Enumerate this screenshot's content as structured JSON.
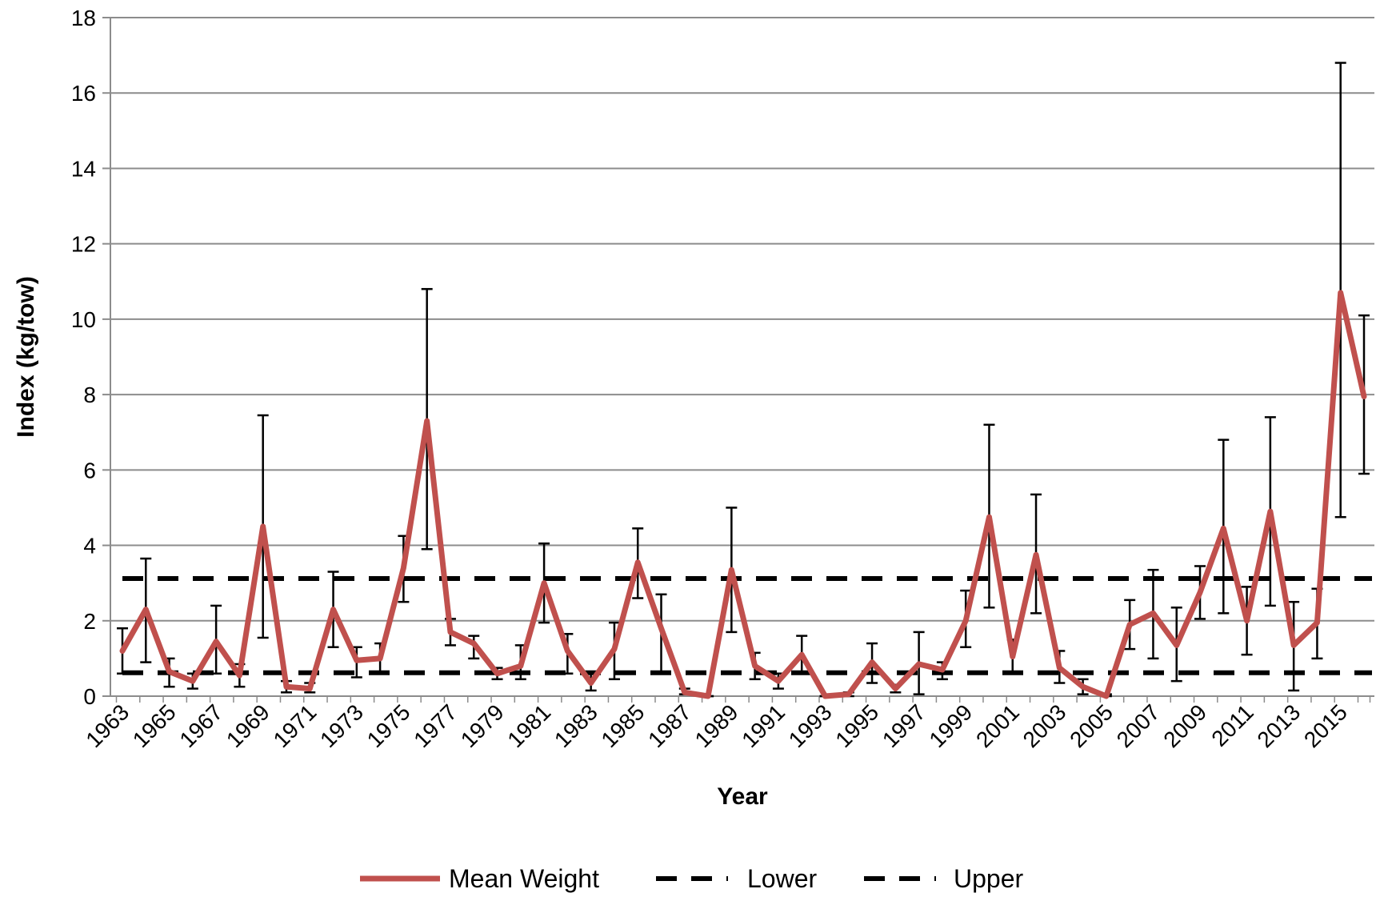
{
  "chart_data": {
    "type": "line",
    "xlabel": "Year",
    "ylabel": "Index (kg/tow)",
    "ylim": [
      0,
      18
    ],
    "yticks": [
      0,
      2,
      4,
      6,
      8,
      10,
      12,
      14,
      16,
      18
    ],
    "x": [
      1963,
      1964,
      1965,
      1966,
      1967,
      1968,
      1969,
      1970,
      1971,
      1972,
      1973,
      1974,
      1975,
      1976,
      1977,
      1978,
      1979,
      1980,
      1981,
      1982,
      1983,
      1984,
      1985,
      1986,
      1987,
      1988,
      1989,
      1990,
      1991,
      1992,
      1993,
      1994,
      1995,
      1996,
      1997,
      1998,
      1999,
      2000,
      2001,
      2002,
      2003,
      2004,
      2005,
      2006,
      2007,
      2008,
      2009,
      2010,
      2011,
      2012,
      2013,
      2014,
      2015,
      2016
    ],
    "x_tick_labels": [
      "1963",
      "1965",
      "1967",
      "1969",
      "1971",
      "1973",
      "1975",
      "1977",
      "1979",
      "1981",
      "1983",
      "1985",
      "1987",
      "1989",
      "1991",
      "1993",
      "1995",
      "1997",
      "1999",
      "2001",
      "2003",
      "2005",
      "2007",
      "2009",
      "2011",
      "2013",
      "2015"
    ],
    "grid": true,
    "legend_position": "bottom",
    "series": [
      {
        "name": "Mean Weight",
        "color": "#c0504d",
        "style": "solid",
        "values": [
          1.2,
          2.3,
          0.65,
          0.4,
          1.45,
          0.55,
          4.5,
          0.25,
          0.2,
          2.3,
          0.95,
          1.0,
          3.4,
          7.3,
          1.7,
          1.4,
          0.6,
          0.8,
          3.0,
          1.2,
          0.35,
          1.25,
          3.55,
          1.8,
          0.1,
          0.0,
          3.35,
          0.8,
          0.4,
          1.1,
          0.0,
          0.05,
          0.9,
          0.2,
          0.85,
          0.7,
          2.0,
          4.75,
          1.05,
          3.75,
          0.75,
          0.25,
          0.0,
          1.9,
          2.2,
          1.35,
          2.75,
          4.45,
          2.0,
          4.9,
          1.35,
          1.95,
          10.7,
          7.95
        ],
        "error_low": [
          0.6,
          0.9,
          0.25,
          0.2,
          0.6,
          0.25,
          1.55,
          0.1,
          0.1,
          1.3,
          0.5,
          0.6,
          2.5,
          3.9,
          1.35,
          1.0,
          0.45,
          0.45,
          1.95,
          0.6,
          0.15,
          0.45,
          2.6,
          0.6,
          0.05,
          0.0,
          1.7,
          0.45,
          0.2,
          0.6,
          0.0,
          0.0,
          0.35,
          0.1,
          0.05,
          0.45,
          1.3,
          2.35,
          0.6,
          2.2,
          0.35,
          0.05,
          0.0,
          1.25,
          1.0,
          0.4,
          2.05,
          2.2,
          1.1,
          2.4,
          0.15,
          1.0,
          4.75,
          5.9
        ],
        "error_high": [
          1.8,
          3.65,
          1.0,
          0.6,
          2.4,
          0.85,
          7.45,
          0.4,
          0.35,
          3.3,
          1.3,
          1.4,
          4.25,
          10.8,
          2.05,
          1.6,
          0.75,
          1.35,
          4.05,
          1.65,
          0.6,
          1.95,
          4.45,
          2.7,
          0.2,
          0.0,
          5.0,
          1.15,
          0.6,
          1.6,
          0.0,
          0.1,
          1.4,
          0.3,
          1.7,
          0.9,
          2.8,
          7.2,
          1.5,
          5.35,
          1.2,
          0.45,
          0.05,
          2.55,
          3.35,
          2.35,
          3.45,
          6.8,
          2.9,
          7.4,
          2.5,
          2.85,
          16.8,
          10.1
        ]
      },
      {
        "name": "Lower",
        "color": "#000000",
        "style": "dashed",
        "constant": 0.62
      },
      {
        "name": "Upper",
        "color": "#000000",
        "style": "dashed",
        "constant": 3.12
      }
    ]
  }
}
